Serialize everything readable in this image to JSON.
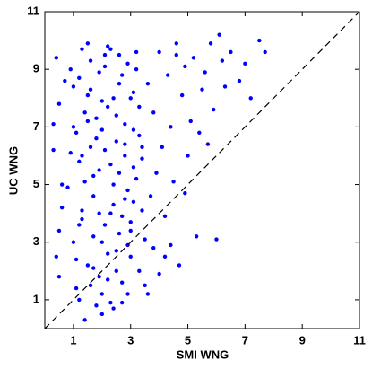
{
  "chart_data": {
    "type": "scatter",
    "x_label": "SMI WNG",
    "y_label": "UC WNG",
    "color": "#0000ff",
    "grid": false,
    "xlim": [
      0,
      11
    ],
    "ylim": [
      0,
      11
    ],
    "xticks": [
      1,
      3,
      5,
      7,
      9,
      11
    ],
    "yticks": [
      1,
      3,
      5,
      7,
      9,
      11
    ],
    "x": [
      1.2,
      1.5,
      2.1,
      2.8,
      3.1,
      1.9,
      2.4,
      1.1,
      3.3,
      2.6,
      1.7,
      2.2,
      2.9,
      1.3,
      3.4,
      2.0,
      1.6,
      2.7,
      3.0,
      1.4,
      0.9,
      1.8,
      2.3,
      2.5,
      3.2,
      1.0,
      2.9,
      1.5,
      2.1,
      3.6,
      1.3,
      2.6,
      3.1,
      1.9,
      2.4,
      0.8,
      1.7,
      2.8,
      3.3,
      2.2,
      1.1,
      1.6,
      2.0,
      2.5,
      3.0,
      3.5,
      1.2,
      1.8,
      2.3,
      2.7,
      4.0,
      4.3,
      3.8,
      4.6,
      4.1,
      3.9,
      4.8,
      4.4,
      3.7,
      4.2,
      5.2,
      5.6,
      6.1,
      5.9,
      6.5,
      7.0,
      7.5,
      5.4,
      6.3,
      7.7,
      0.4,
      0.5,
      0.3,
      0.6,
      0.5,
      0.4,
      0.7,
      0.6,
      0.3,
      0.5,
      1.4,
      2.0,
      2.6,
      3.2,
      1.7,
      2.3,
      2.9,
      1.0,
      1.5,
      2.4,
      3.1,
      1.2,
      1.9,
      2.8,
      3.4,
      2.1,
      1.6,
      2.5,
      3.0,
      1.3,
      4.5,
      4.7,
      5.0,
      3.8,
      4.2,
      4.9,
      5.3,
      4.0,
      3.6,
      4.4,
      2.0,
      2.4,
      1.1,
      1.7,
      2.9,
      3.3,
      1.4,
      2.2,
      2.7,
      3.5,
      1.8,
      2.1,
      2.6,
      3.0,
      1.5,
      1.2,
      2.3,
      2.8,
      3.2,
      1.9,
      5.8,
      6.8,
      5.5,
      6.2,
      7.2,
      4.9,
      5.1,
      6.0,
      4.6,
      5.7,
      1.0,
      1.6,
      2.2,
      2.5,
      3.4,
      0.9,
      2.0,
      1.3,
      3.1,
      2.7
    ],
    "values": [
      8.7,
      7.2,
      9.1,
      6.4,
      8.2,
      5.5,
      4.3,
      6.8,
      7.7,
      9.5,
      3.2,
      2.6,
      4.8,
      4.1,
      5.9,
      7.9,
      9.3,
      8.8,
      3.7,
      5.1,
      6.1,
      6.6,
      5.7,
      7.4,
      9.0,
      8.4,
      2.9,
      2.2,
      3.6,
      8.5,
      9.7,
      3.3,
      4.4,
      1.8,
      8.0,
      4.9,
      5.3,
      6.0,
      6.7,
      9.8,
      2.4,
      1.5,
      1.2,
      2.0,
      2.5,
      3.1,
      1.0,
      0.8,
      0.9,
      1.6,
      9.6,
      8.8,
      7.5,
      9.9,
      6.3,
      5.4,
      8.1,
      7.0,
      4.6,
      3.9,
      9.4,
      8.9,
      10.2,
      7.6,
      9.6,
      9.2,
      10.0,
      6.8,
      8.4,
      9.6,
      9.4,
      7.8,
      6.2,
      5.0,
      3.4,
      2.5,
      8.6,
      4.2,
      7.1,
      1.8,
      7.5,
      6.9,
      8.5,
      5.2,
      4.6,
      4.0,
      9.2,
      3.0,
      9.9,
      5.0,
      6.9,
      5.8,
      8.9,
      7.1,
      4.1,
      9.5,
      6.3,
      2.7,
      3.4,
      3.8,
      5.1,
      2.2,
      6.0,
      2.8,
      2.5,
      4.7,
      3.2,
      1.9,
      1.2,
      2.9,
      0.5,
      0.7,
      1.4,
      2.1,
      1.2,
      2.0,
      0.3,
      1.7,
      0.9,
      1.5,
      7.3,
      6.2,
      5.4,
      8.0,
      8.1,
      3.6,
      9.7,
      4.5,
      9.6,
      4.0,
      9.9,
      8.6,
      8.3,
      9.3,
      8.0,
      9.1,
      7.2,
      3.1,
      9.5,
      6.4,
      7.0,
      8.3,
      7.7,
      6.5,
      6.3,
      9.0,
      3.0,
      6.0,
      5.6,
      3.9
    ]
  }
}
